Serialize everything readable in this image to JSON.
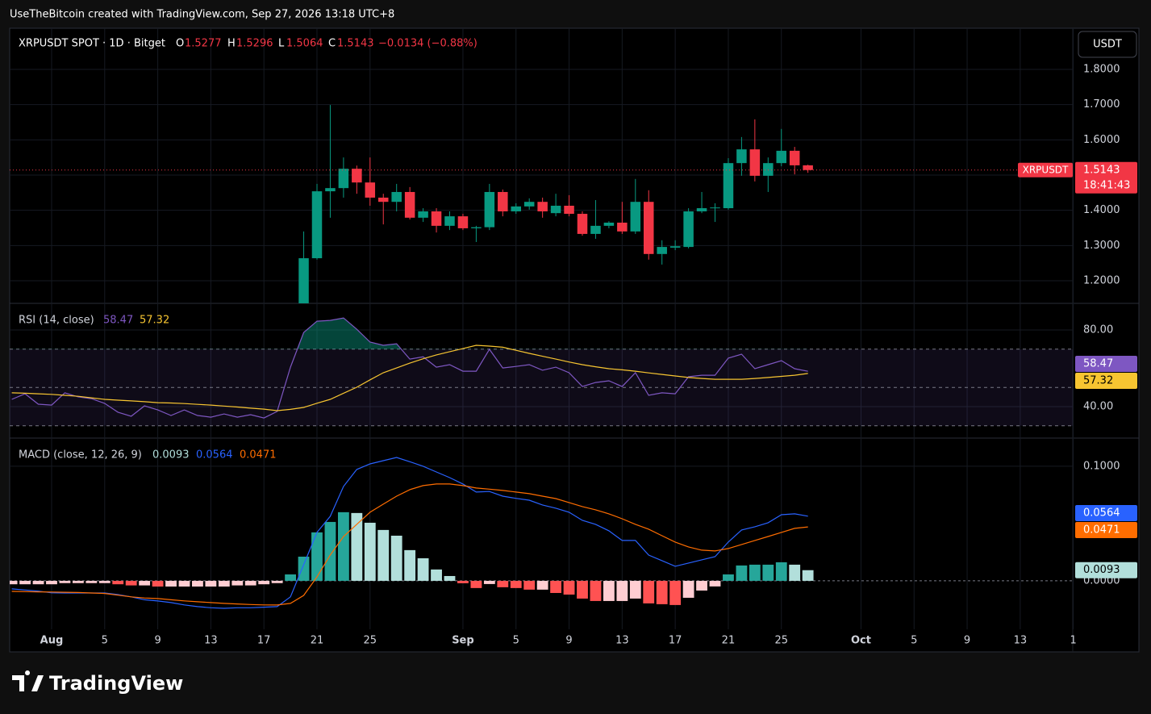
{
  "header": "UseTheBitcoin created with TradingView.com, Sep 27, 2026 13:18 UTC+8",
  "currency_button": "USDT",
  "brand": "TradingView",
  "chart_data": [
    {
      "type": "candlestick",
      "title": "XRPUSDT SPOT · 1D · Bitget",
      "ohlc_letters": [
        "O",
        "H",
        "L",
        "C"
      ],
      "change_label": "−0.0134 (−0.88%)",
      "symbol_tag": "XRPUSDT",
      "countdown": "18:41:43",
      "up_color": "#089981",
      "down_color": "#f23645",
      "x": [
        19,
        20,
        21,
        22,
        23,
        24,
        25,
        26,
        27,
        28,
        29,
        30,
        31,
        32,
        33,
        34,
        35,
        36,
        37,
        38,
        39,
        40,
        41,
        42,
        43,
        44,
        45,
        46,
        47,
        48,
        49,
        50,
        51,
        52,
        53,
        54,
        55,
        56,
        57
      ],
      "open": [
        1.136,
        1.264,
        1.454,
        1.463,
        1.518,
        1.479,
        1.436,
        1.424,
        1.452,
        1.379,
        1.397,
        1.356,
        1.383,
        1.349,
        1.352,
        1.452,
        1.397,
        1.411,
        1.424,
        1.392,
        1.413,
        1.39,
        1.333,
        1.356,
        1.365,
        1.34,
        1.424,
        1.276,
        1.294,
        1.296,
        1.397,
        1.406,
        1.406,
        1.534,
        1.573,
        1.498,
        1.534,
        1.569,
        1.5277
      ],
      "high": [
        1.34,
        1.475,
        1.699,
        1.55,
        1.527,
        1.55,
        1.447,
        1.475,
        1.466,
        1.406,
        1.406,
        1.397,
        1.39,
        1.356,
        1.475,
        1.459,
        1.42,
        1.434,
        1.436,
        1.447,
        1.443,
        1.397,
        1.429,
        1.369,
        1.424,
        1.489,
        1.457,
        1.315,
        1.315,
        1.406,
        1.452,
        1.42,
        1.548,
        1.608,
        1.658,
        1.55,
        1.631,
        1.58,
        1.5296
      ],
      "low": [
        1.13,
        1.26,
        1.379,
        1.436,
        1.447,
        1.413,
        1.36,
        1.397,
        1.374,
        1.367,
        1.337,
        1.344,
        1.344,
        1.31,
        1.344,
        1.383,
        1.39,
        1.402,
        1.379,
        1.383,
        1.383,
        1.328,
        1.319,
        1.349,
        1.333,
        1.333,
        1.26,
        1.246,
        1.287,
        1.292,
        1.392,
        1.367,
        1.402,
        1.498,
        1.482,
        1.452,
        1.525,
        1.502,
        1.5064
      ],
      "close": [
        1.264,
        1.454,
        1.463,
        1.518,
        1.479,
        1.436,
        1.424,
        1.452,
        1.379,
        1.397,
        1.356,
        1.383,
        1.349,
        1.352,
        1.452,
        1.397,
        1.411,
        1.424,
        1.397,
        1.413,
        1.39,
        1.333,
        1.356,
        1.365,
        1.34,
        1.424,
        1.276,
        1.296,
        1.298,
        1.397,
        1.406,
        1.408,
        1.534,
        1.573,
        1.498,
        1.534,
        1.569,
        1.5277,
        1.5143
      ],
      "ylim": [
        1.1359,
        1.9168
      ],
      "yticks": [
        {
          "value": 1.2,
          "label": "1.2000"
        },
        {
          "value": 1.3,
          "label": "1.3000"
        },
        {
          "value": 1.4,
          "label": "1.4000"
        },
        {
          "value": 1.5,
          "label": "1.5000"
        },
        {
          "value": 1.6,
          "label": "1.6000"
        },
        {
          "value": 1.7,
          "label": "1.7000"
        },
        {
          "value": 1.8,
          "label": "1.8000"
        }
      ]
    },
    {
      "type": "line",
      "title": "RSI (14, close)",
      "x": [
        -3,
        -2,
        -1,
        0,
        1,
        2,
        3,
        4,
        5,
        6,
        7,
        8,
        9,
        10,
        11,
        12,
        13,
        14,
        15,
        16,
        17,
        18,
        19,
        20,
        21,
        22,
        23,
        24,
        25,
        26,
        27,
        28,
        29,
        30,
        31,
        32,
        33,
        34,
        35,
        36,
        37,
        38,
        39,
        40,
        41,
        42,
        43,
        44,
        45,
        46,
        47,
        48,
        49,
        50,
        51,
        52,
        53,
        54,
        55,
        56,
        57
      ],
      "series": [
        {
          "color": "#7e57c2",
          "values": [
            43.8,
            46.7,
            41.3,
            40.8,
            47.2,
            45.1,
            44.2,
            41.7,
            37.1,
            35,
            40.4,
            38.3,
            35.4,
            38.3,
            35.4,
            34.5,
            36.2,
            34.5,
            35.8,
            34.1,
            37.5,
            60.6,
            78.7,
            84.6,
            85,
            86.3,
            80.4,
            73.7,
            72,
            72.8,
            64.8,
            66,
            60.6,
            61.9,
            58.5,
            58.5,
            69.9,
            60.2,
            61,
            61.9,
            59,
            60.6,
            57.7,
            50.5,
            52.6,
            53.5,
            50.5,
            57.7,
            45.9,
            47.2,
            46.7,
            55.6,
            56.4,
            56.4,
            65.3,
            67.4,
            59.8,
            61.9,
            64,
            59.8,
            58.47
          ]
        },
        {
          "color": "#f7c531",
          "values": [
            47.2,
            47.0,
            46.7,
            46.4,
            45.9,
            45.4,
            44.6,
            43.8,
            43.4,
            43.0,
            42.6,
            42.1,
            41.9,
            41.6,
            41.2,
            40.8,
            40.3,
            39.8,
            39.2,
            38.7,
            37.9,
            38.6,
            39.6,
            41.8,
            43.8,
            47.0,
            50.1,
            54.0,
            57.7,
            60.2,
            62.7,
            65.0,
            67.0,
            68.7,
            70.3,
            72.0,
            71.6,
            71.0,
            69.4,
            67.8,
            66.3,
            64.8,
            63.3,
            61.9,
            60.8,
            59.8,
            59.2,
            58.5,
            57.6,
            56.8,
            56.0,
            55.2,
            54.7,
            54.3,
            54.3,
            54.3,
            54.7,
            55.2,
            55.8,
            56.4,
            57.32
          ]
        }
      ],
      "bands": [
        70,
        50,
        30
      ],
      "band_color": "rgba(126,87,194,0.12)",
      "overbought_color": "rgba(8,153,129,0.45)",
      "ylim": [
        23.6,
        93.9
      ],
      "yticks": [
        {
          "value": 40,
          "label": "40.00"
        },
        {
          "value": 80,
          "label": "80.00"
        }
      ]
    },
    {
      "type": "macd",
      "title": "MACD (close, 12, 26, 9)",
      "x": [
        -3,
        -2,
        -1,
        0,
        1,
        2,
        3,
        4,
        5,
        6,
        7,
        8,
        9,
        10,
        11,
        12,
        13,
        14,
        15,
        16,
        17,
        18,
        19,
        20,
        21,
        22,
        23,
        24,
        25,
        26,
        27,
        28,
        29,
        30,
        31,
        32,
        33,
        34,
        35,
        36,
        37,
        38,
        39,
        40,
        41,
        42,
        43,
        44,
        45,
        46,
        47,
        48,
        49,
        50,
        51,
        52,
        53,
        54,
        55,
        56,
        57
      ],
      "histogram": [
        -0.003,
        -0.003,
        -0.003,
        -0.003,
        -0.002,
        -0.002,
        -0.002,
        -0.002,
        -0.003,
        -0.004,
        -0.004,
        -0.005,
        -0.005,
        -0.005,
        -0.005,
        -0.005,
        -0.005,
        -0.004,
        -0.004,
        -0.003,
        -0.002,
        0.0056,
        0.0211,
        0.0423,
        0.0514,
        0.0599,
        0.0592,
        0.0507,
        0.0444,
        0.0394,
        0.0268,
        0.0197,
        0.0099,
        0.0042,
        -0.0021,
        -0.0063,
        -0.0028,
        -0.0056,
        -0.0063,
        -0.0077,
        -0.0077,
        -0.0106,
        -0.012,
        -0.0155,
        -0.0176,
        -0.0176,
        -0.0176,
        -0.0155,
        -0.0197,
        -0.0204,
        -0.0211,
        -0.0148,
        -0.0085,
        -0.0049,
        0.0056,
        0.0134,
        0.0141,
        0.0141,
        0.0162,
        0.0141,
        0.0093
      ],
      "histogram_colors": [
        "#26a69a",
        "#b2dfdb",
        "#ff5252",
        "#ffcdd2"
      ],
      "series": [
        {
          "color": "#2962ff",
          "values": [
            -0.007,
            -0.008,
            -0.009,
            -0.0105,
            -0.0106,
            -0.0106,
            -0.0106,
            -0.0106,
            -0.012,
            -0.014,
            -0.0165,
            -0.0176,
            -0.019,
            -0.021,
            -0.0225,
            -0.0235,
            -0.024,
            -0.0235,
            -0.0235,
            -0.023,
            -0.0225,
            -0.014,
            0.0141,
            0.0423,
            0.0563,
            0.0824,
            0.0972,
            0.1021,
            0.1049,
            0.1077,
            0.104,
            0.1,
            0.095,
            0.0901,
            0.0845,
            0.0775,
            0.078,
            0.0739,
            0.072,
            0.0704,
            0.0662,
            0.0634,
            0.0599,
            0.0528,
            0.0493,
            0.0437,
            0.0352,
            0.0352,
            0.0225,
            0.0176,
            0.0127,
            0.0155,
            0.0183,
            0.0211,
            0.0338,
            0.0444,
            0.0472,
            0.0507,
            0.0577,
            0.0585,
            0.0564
          ]
        },
        {
          "color": "#ff6d00",
          "values": [
            -0.0092,
            -0.0094,
            -0.0096,
            -0.0098,
            -0.01,
            -0.0102,
            -0.0106,
            -0.011,
            -0.0125,
            -0.014,
            -0.015,
            -0.0155,
            -0.0165,
            -0.0175,
            -0.0183,
            -0.019,
            -0.0197,
            -0.0202,
            -0.0207,
            -0.021,
            -0.0211,
            -0.0197,
            -0.0127,
            0.0035,
            0.0225,
            0.0387,
            0.0493,
            0.0599,
            0.0669,
            0.0739,
            0.0796,
            0.0831,
            0.0845,
            0.0845,
            0.0831,
            0.081,
            0.08,
            0.0789,
            0.0775,
            0.0761,
            0.0739,
            0.0718,
            0.0683,
            0.0648,
            0.062,
            0.0585,
            0.0542,
            0.0493,
            0.0451,
            0.0394,
            0.0338,
            0.0296,
            0.0268,
            0.0261,
            0.0282,
            0.0317,
            0.0352,
            0.0387,
            0.0423,
            0.0458,
            0.0471
          ]
        }
      ],
      "ylim": [
        -0.0423,
        0.1246
      ],
      "yticks": [
        {
          "value": 0,
          "label": "0.0000"
        },
        {
          "value": 0.1,
          "label": "0.1000"
        }
      ],
      "xlim": [
        -3.16,
        76.96
      ],
      "xticks": [
        {
          "value": 0,
          "label": "Aug"
        },
        {
          "value": 4,
          "label": "5"
        },
        {
          "value": 8,
          "label": "9"
        },
        {
          "value": 12,
          "label": "13"
        },
        {
          "value": 16,
          "label": "17"
        },
        {
          "value": 20,
          "label": "21"
        },
        {
          "value": 24,
          "label": "25"
        },
        {
          "value": 31,
          "label": "Sep"
        },
        {
          "value": 35,
          "label": "5"
        },
        {
          "value": 39,
          "label": "9"
        },
        {
          "value": 43,
          "label": "13"
        },
        {
          "value": 47,
          "label": "17"
        },
        {
          "value": 51,
          "label": "21"
        },
        {
          "value": 55,
          "label": "25"
        },
        {
          "value": 61,
          "label": "Oct"
        },
        {
          "value": 65,
          "label": "5"
        },
        {
          "value": 69,
          "label": "9"
        },
        {
          "value": 73,
          "label": "13"
        },
        {
          "value": 77,
          "label": "1"
        }
      ]
    }
  ]
}
